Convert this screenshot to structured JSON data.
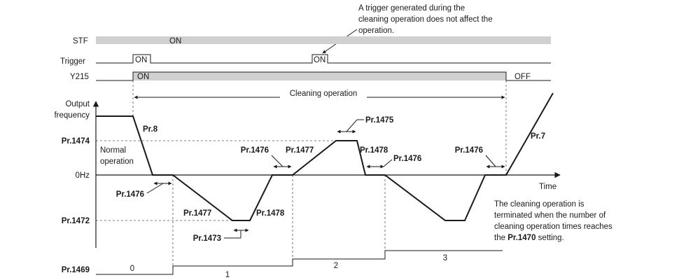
{
  "annotation_top": {
    "line1": "A trigger generated during the",
    "line2": "cleaning operation does not affect the",
    "line3": "operation."
  },
  "signals": {
    "stf": {
      "label": "STF",
      "state": "ON"
    },
    "trigger": {
      "label": "Trigger",
      "state1": "ON",
      "state2": "ON"
    },
    "y215": {
      "label": "Y215",
      "on": "ON",
      "off": "OFF"
    }
  },
  "cleaning_operation": "Cleaning operation",
  "axes": {
    "y_title_1": "Output",
    "y_title_2": "frequency",
    "y_ticks": {
      "pr1474": "Pr.1474",
      "zero": "0Hz",
      "pr1472": "Pr.1472"
    },
    "x_title": "Time"
  },
  "normal_operation": {
    "line1": "Normal",
    "line2": "operation"
  },
  "params": {
    "pr8": "Pr.8",
    "pr7": "Pr.7",
    "pr1476": "Pr.1476",
    "pr1477": "Pr.1477",
    "pr1478": "Pr.1478",
    "pr1473": "Pr.1473",
    "pr1475": "Pr.1475"
  },
  "note_bottom": {
    "line1": "The cleaning operation is",
    "line2": "terminated when the number of",
    "line3": "cleaning operation times reaches",
    "line4_prefix": "the ",
    "line4_param": "Pr.1470",
    "line4_suffix": " setting."
  },
  "counter": {
    "label": "Pr.1469",
    "values": [
      "0",
      "1",
      "2",
      "3"
    ]
  }
}
